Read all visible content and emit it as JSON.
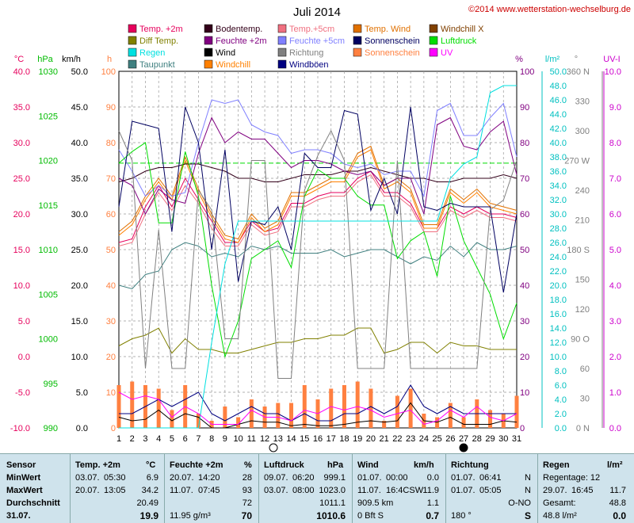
{
  "header": {
    "title": "Juli 2014",
    "copyright": "©2014 www.wetterstation-wechselburg.de"
  },
  "legend": [
    {
      "label": "Temp. +2m",
      "color": "#e6005c"
    },
    {
      "label": "Bodentemp.",
      "color": "#33001a"
    },
    {
      "label": "Temp.+5cm",
      "color": "#f07080"
    },
    {
      "label": "Temp. Wind",
      "color": "#e07000"
    },
    {
      "label": "Windchill X",
      "color": "#804000"
    },
    {
      "label": "Diff Temp.",
      "color": "#808000"
    },
    {
      "label": "Feuchte +2m",
      "color": "#800080"
    },
    {
      "label": "Feuchte +5cm",
      "color": "#8080ff"
    },
    {
      "label": "Sonnenschein",
      "color": "#000060"
    },
    {
      "label": "Luftdruck",
      "color": "#00dd00"
    },
    {
      "label": "Regen",
      "color": "#00e0e0"
    },
    {
      "label": "Wind",
      "color": "#000000"
    },
    {
      "label": "Richtung",
      "color": "#808080"
    },
    {
      "label": "Sonnenschein",
      "color": "#ff8040"
    },
    {
      "label": "UV",
      "color": "#ff00ff"
    },
    {
      "label": "Taupunkt",
      "color": "#408080"
    },
    {
      "label": "Windchill",
      "color": "#ff8000"
    },
    {
      "label": "Windböen",
      "color": "#000080"
    }
  ],
  "axes": {
    "headers": {
      "temp": "°C",
      "hpa": "hPa",
      "kmh": "km/h",
      "h": "h",
      "pct": "%",
      "rain": "l/m²",
      "deg": "°",
      "uv": "UV-I"
    },
    "temp_ticks": [
      "40.0",
      "35.0",
      "30.0",
      "25.0",
      "20.0",
      "15.0",
      "10.0",
      "5.0",
      "0.0",
      "-5.0",
      "-10.0"
    ],
    "hpa_ticks": [
      "1030",
      "1025",
      "1020",
      "1015",
      "1010",
      "1005",
      "1000",
      "995",
      "990"
    ],
    "kmh_ticks": [
      "50.0",
      "45.0",
      "40.0",
      "35.0",
      "30.0",
      "25.0",
      "20.0",
      "15.0",
      "10.0",
      "5.0",
      "0.0"
    ],
    "h_ticks": [
      "100",
      "90",
      "80",
      "70",
      "60",
      "50",
      "40",
      "30",
      "20",
      "10",
      "0"
    ],
    "pct_ticks": [
      "100",
      "90",
      "80",
      "70",
      "60",
      "50",
      "40",
      "30",
      "20",
      "10",
      "0"
    ],
    "rain_ticks": [
      "50.0",
      "48.0",
      "46.0",
      "44.0",
      "42.0",
      "40.0",
      "38.0",
      "36.0",
      "34.0",
      "32.0",
      "30.0",
      "28.0",
      "26.0",
      "24.0",
      "22.0",
      "20.0",
      "18.0",
      "16.0",
      "14.0",
      "12.0",
      "10.0",
      "8.0",
      "6.0",
      "4.0",
      "2.0",
      "0.0"
    ],
    "deg_ticks": [
      "360 N",
      "330",
      "300",
      "270 W",
      "240",
      "210",
      "180 S",
      "150",
      "120",
      "90 O",
      "60",
      "30",
      "0 N"
    ],
    "uv_ticks": [
      "10.0",
      "9.0",
      "8.0",
      "7.0",
      "6.0",
      "5.0",
      "4.0",
      "3.0",
      "2.0",
      "1.0",
      "0.0"
    ],
    "day_labels": [
      "1",
      "2",
      "3",
      "4",
      "5",
      "6",
      "7",
      "8",
      "9",
      "10",
      "11",
      "12",
      "13",
      "14",
      "15",
      "16",
      "17",
      "18",
      "19",
      "20",
      "21",
      "22",
      "23",
      "24",
      "25",
      "26",
      "27",
      "28",
      "29",
      "30",
      "31"
    ]
  },
  "chart_data": {
    "type": "line",
    "title": "Juli 2014",
    "x": [
      1,
      2,
      3,
      4,
      5,
      6,
      7,
      8,
      9,
      10,
      11,
      12,
      13,
      14,
      15,
      16,
      17,
      18,
      19,
      20,
      21,
      22,
      23,
      24,
      25,
      26,
      27,
      28,
      29,
      30,
      31
    ],
    "hpa_range": [
      990,
      1030
    ],
    "series": [
      {
        "name": "Temp. +2m",
        "axis": "h",
        "color": "#e6005c",
        "values": [
          52,
          53,
          62,
          68,
          62,
          70,
          64,
          58,
          52,
          52,
          58,
          55,
          56,
          63,
          63,
          65,
          66,
          66,
          70,
          72,
          66,
          66,
          63,
          56,
          56,
          62,
          60,
          62,
          60,
          60,
          59
        ]
      },
      {
        "name": "Temp.+5cm",
        "axis": "h",
        "color": "#f07080",
        "values": [
          51,
          52,
          60,
          66,
          61,
          68,
          63,
          56,
          51,
          51,
          57,
          54,
          55,
          62,
          62,
          64,
          65,
          65,
          69,
          71,
          65,
          65,
          62,
          55,
          55,
          61,
          59,
          61,
          59,
          59,
          58
        ]
      },
      {
        "name": "Temp. Wind",
        "axis": "h",
        "color": "#e07000",
        "values": [
          55,
          58,
          65,
          70,
          65,
          76,
          67,
          60,
          54,
          53,
          60,
          56,
          58,
          66,
          66,
          68,
          70,
          70,
          77,
          79,
          68,
          70,
          67,
          57,
          57,
          67,
          64,
          67,
          63,
          62,
          61
        ]
      },
      {
        "name": "Windchill",
        "axis": "h",
        "color": "#ff8000",
        "values": [
          54,
          57,
          64,
          69,
          64,
          75,
          66,
          59,
          53,
          52,
          59,
          55,
          57,
          65,
          65,
          67,
          69,
          69,
          76,
          78,
          67,
          69,
          66,
          56,
          56,
          66,
          63,
          66,
          62,
          61,
          60
        ]
      },
      {
        "name": "Bodentemp.",
        "axis": "h",
        "color": "#33001a",
        "values": [
          69,
          70,
          72,
          73,
          73,
          74,
          74,
          73,
          72,
          70,
          70,
          69,
          69,
          70,
          71,
          71,
          71,
          72,
          72,
          73,
          72,
          71,
          70,
          70,
          69,
          69,
          70,
          70,
          70,
          71,
          70
        ]
      },
      {
        "name": "Feuchte +2m",
        "axis": "h",
        "color": "#800080",
        "values": [
          70,
          68,
          60,
          67,
          64,
          63,
          77,
          87,
          80,
          83,
          81,
          81,
          77,
          73,
          75,
          75,
          74,
          72,
          71,
          72,
          68,
          70,
          70,
          60,
          85,
          87,
          79,
          78,
          83,
          86,
          71
        ]
      },
      {
        "name": "Feuchte +5cm",
        "axis": "h",
        "color": "#8080ff",
        "values": [
          78,
          72,
          65,
          68,
          65,
          66,
          80,
          92,
          91,
          92,
          85,
          83,
          82,
          77,
          78,
          78,
          77,
          74,
          73,
          74,
          71,
          72,
          72,
          65,
          89,
          91,
          82,
          82,
          87,
          91,
          76
        ]
      },
      {
        "name": "Taupunkt",
        "axis": "h",
        "color": "#408080",
        "values": [
          40,
          39,
          43,
          44,
          50,
          52,
          51,
          48,
          49,
          48,
          51,
          50,
          51,
          49,
          49,
          49,
          50,
          48,
          49,
          50,
          50,
          48,
          46,
          48,
          47,
          51,
          48,
          52,
          50,
          50,
          51
        ]
      },
      {
        "name": "Diff Temp.",
        "axis": "h",
        "color": "#808000",
        "values": [
          23,
          25,
          26,
          28,
          21,
          25,
          22,
          22,
          21,
          21,
          22,
          23,
          24,
          24,
          25,
          25,
          26,
          26,
          28,
          28,
          21,
          22,
          24,
          24,
          21,
          24,
          23,
          23,
          22,
          22,
          22
        ]
      },
      {
        "name": "Luftdruck",
        "axis": "hpa",
        "color": "#00dd00",
        "values": [
          1019.7,
          1021,
          1022,
          1013,
          1013,
          1021,
          1016,
          1006,
          998,
          1002,
          1009,
          1010,
          1011,
          1008,
          1016,
          1019,
          1018,
          1018,
          1016,
          1015,
          1015,
          1009,
          1011,
          1012,
          1007,
          1016,
          1011,
          1008,
          1005,
          1000,
          1004
        ]
      },
      {
        "name": "Wind",
        "axis": "kmh",
        "color": "#000000",
        "values": [
          1.5,
          1.0,
          1.2,
          2.5,
          1.0,
          2.0,
          1.5,
          0,
          0,
          0.5,
          1.0,
          0.8,
          0.8,
          0.3,
          0.5,
          0.3,
          0.3,
          0.5,
          0.8,
          1.0,
          0.8,
          1.0,
          3.5,
          1.0,
          0.8,
          1.5,
          0.5,
          0.5,
          0.5,
          1.0,
          0.8
        ]
      },
      {
        "name": "Windböen",
        "axis": "kmh",
        "color": "#000080",
        "values": [
          2,
          2,
          3,
          4,
          3,
          4,
          5,
          2,
          1,
          2,
          3,
          2,
          2,
          1,
          2,
          1,
          1,
          2,
          2,
          3,
          2,
          3,
          6,
          3,
          2,
          3,
          2,
          2,
          2,
          2,
          2
        ]
      },
      {
        "name": "Sonnenschein",
        "axis": "h",
        "color": "#000060",
        "values": [
          62,
          86,
          85,
          84,
          55,
          90,
          80,
          50,
          78,
          41,
          58,
          57,
          62,
          50,
          77,
          73,
          73,
          89,
          88,
          61,
          70,
          60,
          90,
          62,
          61,
          63,
          62,
          62,
          62,
          38,
          60
        ]
      },
      {
        "name": "Richtung",
        "axis": "deg",
        "color": "#808080",
        "values": [
          300,
          270,
          60,
          200,
          60,
          60,
          240,
          220,
          90,
          90,
          270,
          270,
          50,
          50,
          240,
          275,
          300,
          270,
          60,
          60,
          60,
          270,
          60,
          60,
          60,
          60,
          60,
          60,
          220,
          230,
          270
        ]
      },
      {
        "name": "Regen",
        "axis": "rain",
        "color": "#00e0e0",
        "values": [
          0,
          0,
          0,
          0,
          0,
          0,
          0,
          12,
          23,
          29,
          29,
          29,
          29,
          29,
          29,
          29,
          29,
          29,
          29,
          29,
          29,
          29,
          29,
          29,
          29,
          35,
          37,
          38,
          47,
          48,
          48
        ]
      },
      {
        "name": "UV",
        "axis": "uv",
        "color": "#ff00ff",
        "values": [
          1.0,
          0.8,
          0.9,
          0.8,
          0.3,
          0.6,
          0.4,
          0.1,
          0.1,
          0.1,
          0.5,
          0.3,
          0.3,
          0.2,
          0.5,
          0.4,
          0.6,
          0.5,
          0.6,
          0.5,
          0.3,
          0.4,
          0.5,
          0.1,
          0.2,
          0.5,
          0.3,
          0.6,
          0.3,
          0.2,
          0.4
        ]
      }
    ],
    "sunshine_hours": [
      12,
      13,
      12,
      11,
      5,
      12,
      4,
      2,
      6,
      3,
      8,
      6,
      7,
      7,
      12,
      8,
      11,
      12,
      13,
      11,
      2,
      9,
      11,
      4,
      3,
      7,
      3,
      8,
      5,
      4,
      9
    ],
    "target_line_hpa": 1019.7
  },
  "stats": {
    "date": "31.07.",
    "sensor": {
      "title": "Sensor",
      "labels": [
        "MinWert",
        "MaxWert",
        "Durchschnitt"
      ]
    },
    "temp": {
      "title": "Temp. +2m",
      "unit": "°C",
      "rows": [
        [
          "03.07.",
          "05:30",
          "6.9"
        ],
        [
          "20.07.",
          "13:05",
          "34.2"
        ],
        [
          "",
          "",
          "20.49"
        ]
      ],
      "current": "19.9"
    },
    "humidity": {
      "title": "Feuchte +2m",
      "unit": "%",
      "rows": [
        [
          "20.07.",
          "14:20",
          "28"
        ],
        [
          "11.07.",
          "07:45",
          "93"
        ],
        [
          "",
          "",
          "72"
        ]
      ],
      "extra": "11.95 g/m³",
      "current": "70"
    },
    "pressure": {
      "title": "Luftdruck",
      "unit": "hPa",
      "rows": [
        [
          "09.07.",
          "06:20",
          "999.1"
        ],
        [
          "03.07.",
          "08:00",
          "1023.0"
        ],
        [
          "",
          "",
          "1011.1"
        ]
      ],
      "current": "1010.6"
    },
    "wind": {
      "title": "Wind",
      "unit": "km/h",
      "rows": [
        [
          "01.07.",
          "00:00",
          "0.0"
        ],
        [
          "11.07.",
          "16:4CSW",
          "11.9"
        ],
        [
          "909.5 km",
          "",
          "1.1"
        ]
      ],
      "extra": "0 Bft S",
      "current": "0.7"
    },
    "direction": {
      "title": "Richtung",
      "rows": [
        [
          "01.07.",
          "06:41",
          "N"
        ],
        [
          "01.07.",
          "05:05",
          "N"
        ],
        [
          "",
          "",
          "O-NO"
        ]
      ],
      "extra": "180 °",
      "current": "S"
    },
    "rain": {
      "title": "Regen",
      "unit": "l/m²",
      "rows": [
        [
          "Regentage: 12",
          "",
          ""
        ],
        [
          "29.07.",
          "16:45",
          "11.7"
        ],
        [
          "Gesamt:",
          "",
          "48.8"
        ]
      ],
      "extra": "48.8 l/m²",
      "current": "0.0"
    }
  }
}
